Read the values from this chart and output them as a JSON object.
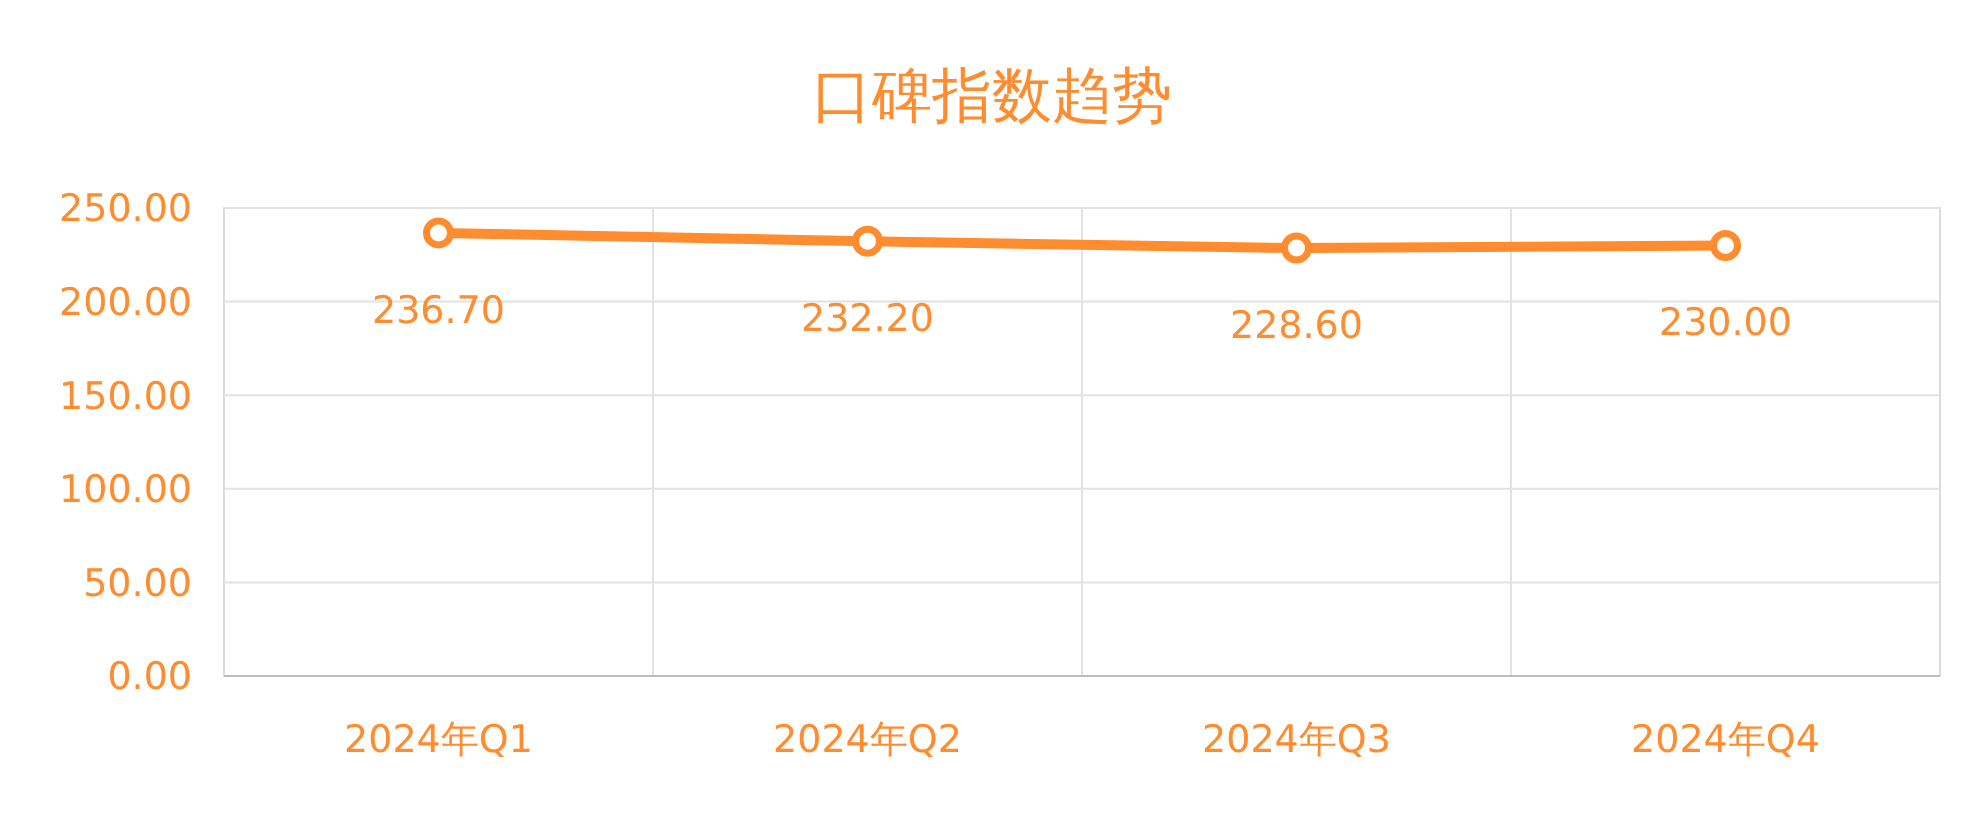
{
  "chart_data": {
    "type": "line",
    "title": "口碑指数趋势",
    "categories": [
      "2024年Q1",
      "2024年Q2",
      "2024年Q3",
      "2024年Q4"
    ],
    "series": [
      {
        "color": "#ff8c2e",
        "values": [
          236.7,
          232.2,
          228.6,
          230.0
        ]
      }
    ],
    "ylim": [
      0,
      250
    ],
    "yticks": [
      {
        "value": 0,
        "label": "0.00"
      },
      {
        "value": 50,
        "label": "50.00"
      },
      {
        "value": 100,
        "label": "100.00"
      },
      {
        "value": 150,
        "label": "150.00"
      },
      {
        "value": 200,
        "label": "200.00"
      },
      {
        "value": 250,
        "label": "250.00"
      }
    ],
    "value_labels": [
      "236.70",
      "232.20",
      "228.60",
      "230.00"
    ],
    "grid": true,
    "marker": "circle",
    "line_style": "solid"
  }
}
